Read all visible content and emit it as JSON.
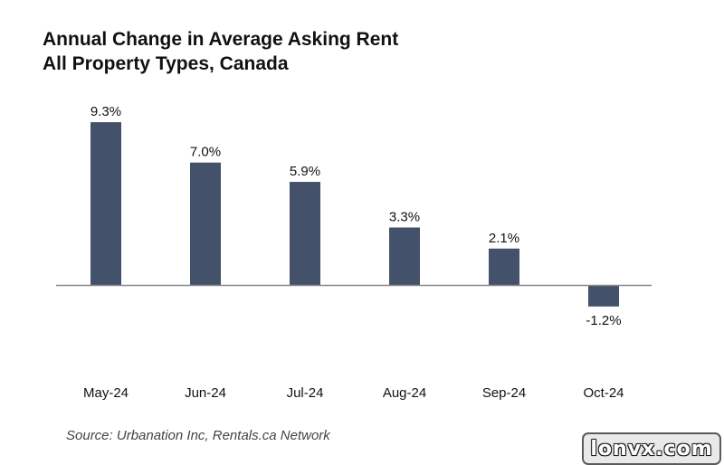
{
  "chart_data": {
    "type": "bar",
    "title": "Annual Change in Average Asking Rent",
    "subtitle": "All Property Types, Canada",
    "categories": [
      "May-24",
      "Jun-24",
      "Jul-24",
      "Aug-24",
      "Sep-24",
      "Oct-24"
    ],
    "values": [
      9.3,
      7.0,
      5.9,
      3.3,
      2.1,
      -1.2
    ],
    "data_labels": [
      "9.3%",
      "7.0%",
      "5.9%",
      "3.3%",
      "2.1%",
      "-1.2%"
    ],
    "xlabel": "",
    "ylabel": "",
    "grid": false,
    "bar_color": "#44516a",
    "axis_color": "#888888"
  },
  "source": "Source: Urbanation Inc, Rentals.ca Network",
  "watermark": "lonvx.com"
}
